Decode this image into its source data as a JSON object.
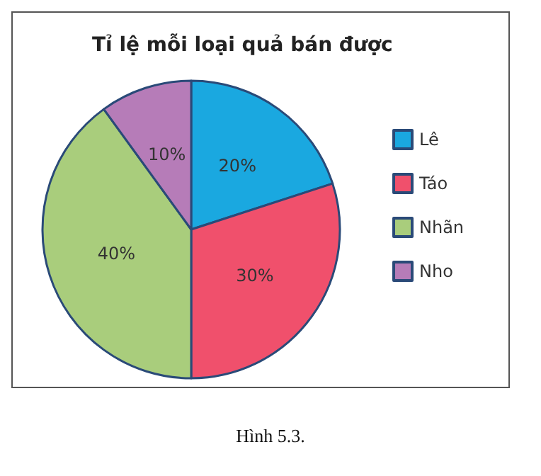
{
  "chart_data": {
    "type": "pie",
    "title": "Tỉ lệ mỗi loại quả bán được",
    "categories": [
      "Lê",
      "Táo",
      "Nhãn",
      "Nho"
    ],
    "values": [
      20,
      30,
      40,
      10
    ],
    "colors": [
      "#1aa8e0",
      "#f0506c",
      "#a9cd7c",
      "#b67cb8"
    ],
    "value_labels": [
      "20%",
      "30%",
      "40%",
      "10%"
    ],
    "legend": "right",
    "annotations": [
      "Hình 5.3."
    ]
  }
}
